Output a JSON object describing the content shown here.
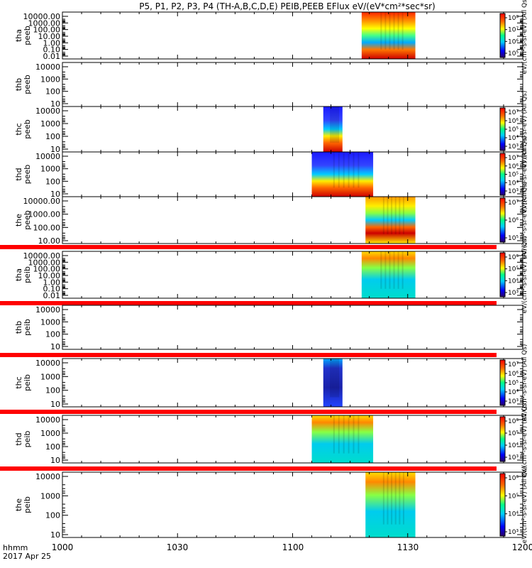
{
  "chart_data": {
    "type": "heatmap",
    "title": "P5, P1, P2, P3, P4 (TH-A,B,C,D,E) PEIB,PEEB EFlux eV/(eV*cm²*sec*sr)",
    "x_ticks": [
      "1000",
      "1030",
      "1100",
      "1130",
      "1200"
    ],
    "x_label_lines": [
      "hhmm",
      "2017 Apr 25"
    ],
    "x_range_hhmm": [
      "1000",
      "1200"
    ],
    "panels": [
      {
        "probe": "tha",
        "species": "peeb",
        "y_ticks": [
          "10000.00",
          "1000.00",
          "100.00",
          "10.00",
          "1.00",
          "0.10",
          "0.01"
        ],
        "data_start": "1118",
        "data_end": "1132",
        "cbar_ticks": [
          "10⁸",
          "10⁷",
          "10⁶",
          "10⁵"
        ],
        "cbar_label": "eV/(cm²-s-sr-eV) (All Qs)"
      },
      {
        "probe": "thb",
        "species": "peeb",
        "y_ticks": [
          "10000",
          "1000",
          "100",
          "10"
        ],
        "data_start": "",
        "data_end": "",
        "cbar_ticks": [],
        "cbar_label": ""
      },
      {
        "probe": "thc",
        "species": "peeb",
        "y_ticks": [
          "10000",
          "1000",
          "100",
          "10"
        ],
        "data_start": "1108",
        "data_end": "1113",
        "cbar_ticks": [
          "10⁷",
          "10⁶",
          "10⁵",
          "10⁴",
          "10³"
        ],
        "cbar_label": "eV/(cm²-s-sr-eV) (All Qs)"
      },
      {
        "probe": "thd",
        "species": "peeb",
        "y_ticks": [
          "10000",
          "1000",
          "100",
          "10"
        ],
        "data_start": "1105",
        "data_end": "1121",
        "cbar_ticks": [
          "10⁷",
          "10⁶",
          "10⁵",
          "10⁴",
          "10³"
        ],
        "cbar_label": "eV/(cm²-s-sr-eV) (All Qs)"
      },
      {
        "probe": "the",
        "species": "peeb",
        "y_ticks": [
          "10000.00",
          "1000.00",
          "100.00",
          "10.00"
        ],
        "data_start": "1119",
        "data_end": "1132",
        "cbar_ticks": [
          "10⁷",
          "10⁶",
          "10⁵"
        ],
        "cbar_label": "eV/(cm²-s-sr-eV) (All Qs)"
      },
      {
        "probe": "tha",
        "species": "peib",
        "y_ticks": [
          "10000.00",
          "1000.00",
          "100.00",
          "10.00",
          "1.00",
          "0.10",
          "0.01"
        ],
        "data_start": "1118",
        "data_end": "1132",
        "cbar_ticks": [
          "10⁶",
          "10⁵",
          "10⁴",
          "10³"
        ],
        "cbar_label": "eV/(cm²-s-sr-eV) (All Qs)"
      },
      {
        "probe": "thb",
        "species": "peib",
        "y_ticks": [
          "10000",
          "1000",
          "100",
          "10"
        ],
        "data_start": "",
        "data_end": "",
        "cbar_ticks": [],
        "cbar_label": ""
      },
      {
        "probe": "thc",
        "species": "peib",
        "y_ticks": [
          "10000",
          "1000",
          "100",
          "10"
        ],
        "data_start": "1108",
        "data_end": "1113",
        "cbar_ticks": [
          "10⁷",
          "10⁶",
          "10⁵",
          "10⁴",
          "10³"
        ],
        "cbar_label": "eV/(cm²-s-sr-eV) (All Qs)"
      },
      {
        "probe": "thd",
        "species": "peib",
        "y_ticks": [
          "10000",
          "1000",
          "100",
          "10"
        ],
        "data_start": "1105",
        "data_end": "1121",
        "cbar_ticks": [
          "10⁶",
          "10⁵",
          "10⁴",
          "10³"
        ],
        "cbar_label": "eV/(cm²-s-sr-eV) (All Qs)"
      },
      {
        "probe": "the",
        "species": "peib",
        "y_ticks": [
          "10000",
          "1000",
          "100",
          "10"
        ],
        "data_start": "1119",
        "data_end": "1132",
        "cbar_ticks": [
          "10⁶",
          "10⁵",
          "10⁴",
          "10³"
        ],
        "cbar_label": "eV/(cm²-s-sr-eV) (All Qs)"
      }
    ],
    "colors": {
      "spectrum": [
        "#ffee00",
        "#ff9900",
        "#ff4400",
        "#e00000",
        "#aa0000"
      ],
      "low": [
        "#2233ff",
        "#00aaff",
        "#00ddcc",
        "#00cc66"
      ],
      "separator_bar": "#ff0000",
      "background": "#ffffff"
    }
  }
}
